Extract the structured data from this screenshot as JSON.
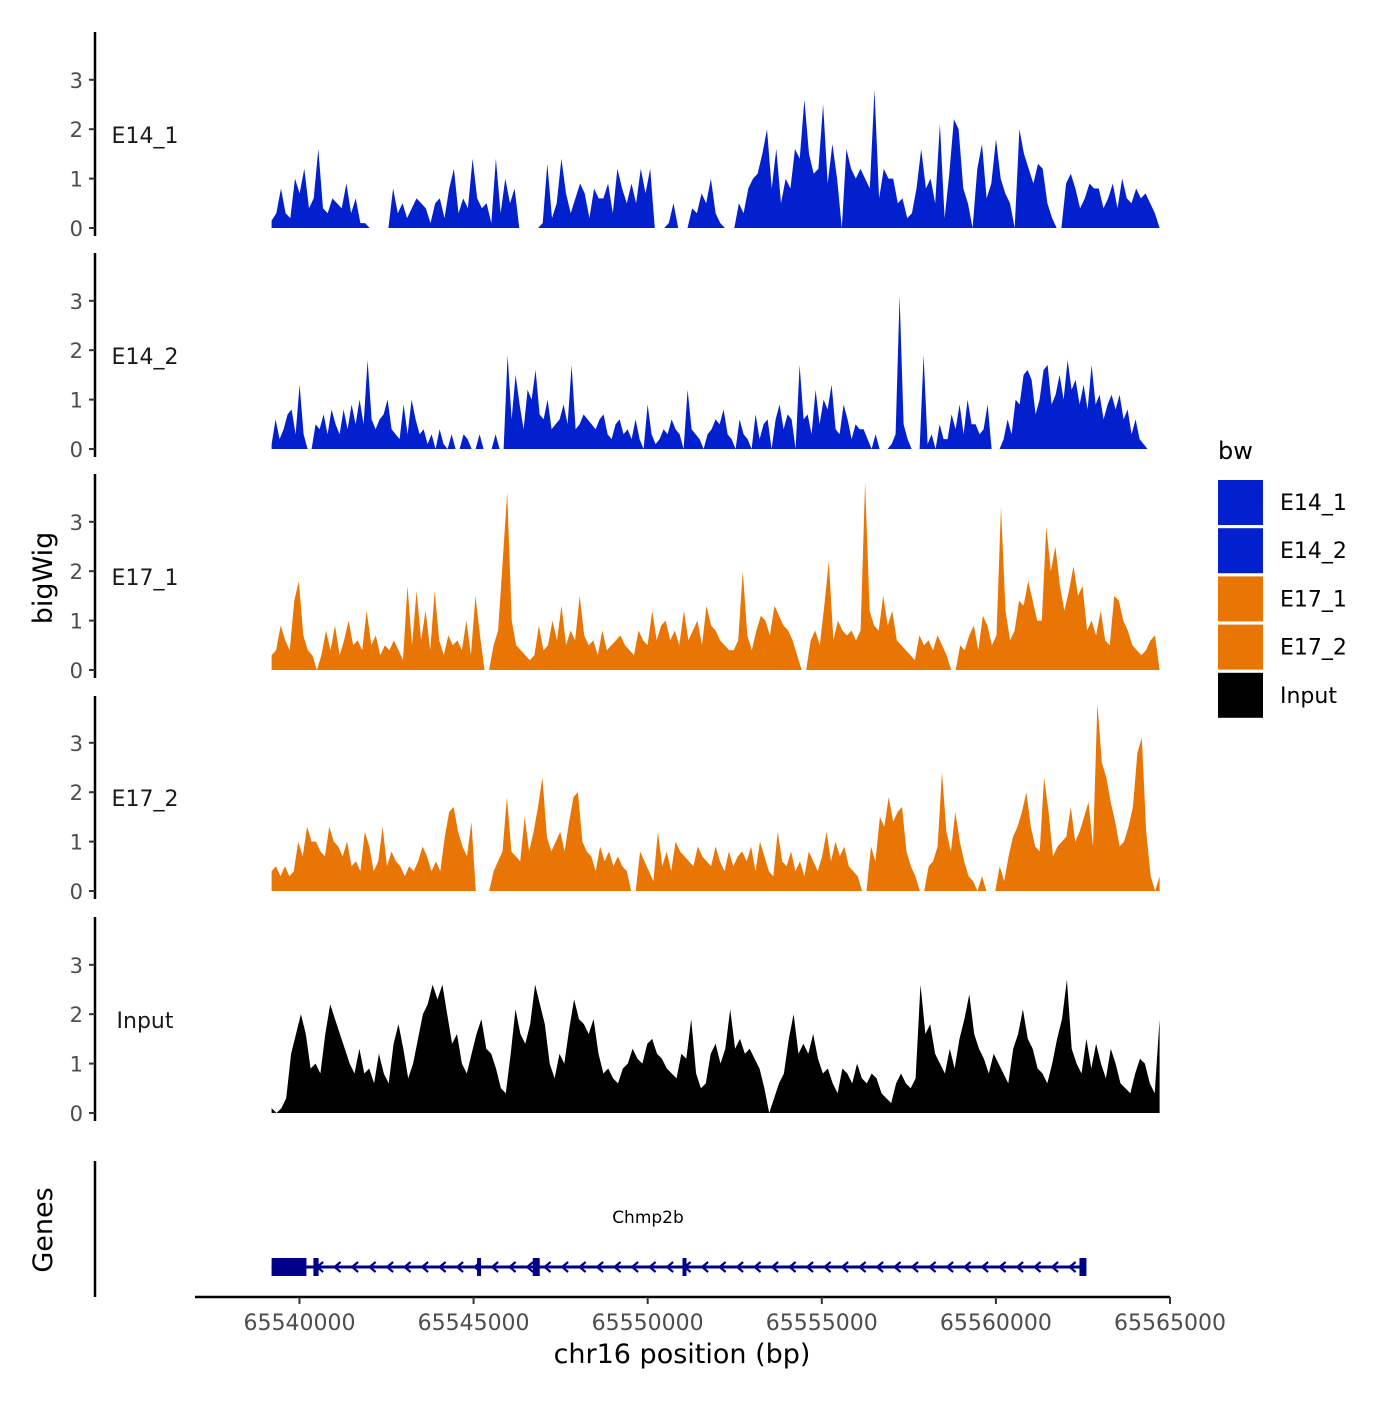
{
  "chart_data": {
    "type": "area",
    "xlabel": "chr16 position (bp)",
    "ylabel": "bigWig",
    "genes_label": "Genes",
    "xlim": [
      65537000,
      65565000
    ],
    "x_ticks": [
      65540000,
      65545000,
      65550000,
      65555000,
      65560000,
      65565000
    ],
    "x_tick_labels": [
      "65540000",
      "65545000",
      "65550000",
      "65555000",
      "65560000",
      "65565000"
    ],
    "ylim": [
      0,
      4
    ],
    "y_ticks": [
      0,
      1,
      2,
      3
    ],
    "y_tick_labels": [
      "0",
      "1",
      "2",
      "3"
    ],
    "track_x_range": [
      65539200,
      65564700
    ],
    "legend": {
      "title": "bw",
      "entries": [
        {
          "label": "E14_1",
          "color": "#0320CF"
        },
        {
          "label": "E14_2",
          "color": "#0320CF"
        },
        {
          "label": "E17_1",
          "color": "#E87504"
        },
        {
          "label": "E17_2",
          "color": "#E87504"
        },
        {
          "label": "Input",
          "color": "#000000"
        }
      ]
    },
    "series": [
      {
        "name": "E14_1",
        "color": "#0320CF",
        "values": [
          0.15,
          0.3,
          0.8,
          0.3,
          0.2,
          1.0,
          0.7,
          1.2,
          0.4,
          0.6,
          1.6,
          0.4,
          0.3,
          0.6,
          0.5,
          0.4,
          0.9,
          0.3,
          0.6,
          0.1,
          0.1,
          0.0,
          0.0,
          0.0,
          0.0,
          0.0,
          0.8,
          0.3,
          0.5,
          0.2,
          0.4,
          0.6,
          0.5,
          0.4,
          0.1,
          0.5,
          0.6,
          0.2,
          0.8,
          1.2,
          0.3,
          0.6,
          0.4,
          1.4,
          0.6,
          0.4,
          0.5,
          0.1,
          1.4,
          0.3,
          1.0,
          0.5,
          0.8,
          0.0,
          0.0,
          0.0,
          0.0,
          0.0,
          0.1,
          1.3,
          0.2,
          0.5,
          1.4,
          0.7,
          0.3,
          0.6,
          0.9,
          0.7,
          0.2,
          0.8,
          0.6,
          0.6,
          0.9,
          0.3,
          1.2,
          0.8,
          0.5,
          0.9,
          0.5,
          1.2,
          0.7,
          1.2,
          0.0,
          0.0,
          0.0,
          0.1,
          0.5,
          0.0,
          0.0,
          0.0,
          0.4,
          0.3,
          0.7,
          0.5,
          1.0,
          0.3,
          0.1,
          0.0,
          0.0,
          0.0,
          0.5,
          0.3,
          0.8,
          1.0,
          1.1,
          1.5,
          2.0,
          0.8,
          1.6,
          0.5,
          1.0,
          0.8,
          1.6,
          1.4,
          2.6,
          1.5,
          1.1,
          1.2,
          2.5,
          0.9,
          1.7,
          1.0,
          0.0,
          1.6,
          1.2,
          1.0,
          1.2,
          1.0,
          0.8,
          2.8,
          0.6,
          1.2,
          1.0,
          1.0,
          0.5,
          0.6,
          0.2,
          0.3,
          0.8,
          1.6,
          0.8,
          1.0,
          0.5,
          2.1,
          0.2,
          1.1,
          2.2,
          2.0,
          0.8,
          0.5,
          0.0,
          1.2,
          1.7,
          0.6,
          0.9,
          1.8,
          1.0,
          0.7,
          0.5,
          0.0,
          2.0,
          1.5,
          1.2,
          0.9,
          1.3,
          1.2,
          0.5,
          0.2,
          0.0,
          0.0,
          0.9,
          1.1,
          0.8,
          0.4,
          0.6,
          0.9,
          0.8,
          0.8,
          0.4,
          0.6,
          0.9,
          0.4,
          1.0,
          0.6,
          0.5,
          0.8,
          0.6,
          0.7,
          0.5,
          0.3,
          0.0
        ]
      },
      {
        "name": "E14_2",
        "color": "#0320CF",
        "values": [
          0.1,
          0.6,
          0.2,
          0.4,
          0.7,
          0.8,
          0.3,
          1.3,
          0.3,
          0.0,
          0.0,
          0.5,
          0.4,
          0.7,
          0.3,
          0.8,
          0.5,
          0.3,
          0.8,
          0.4,
          0.9,
          0.5,
          1.0,
          0.5,
          1.8,
          0.6,
          0.4,
          0.6,
          0.7,
          1.0,
          0.4,
          0.3,
          0.2,
          0.9,
          0.3,
          1.0,
          0.6,
          0.3,
          0.4,
          0.1,
          0.3,
          0.0,
          0.4,
          0.1,
          0.0,
          0.3,
          0.0,
          0.0,
          0.3,
          0.2,
          0.0,
          0.0,
          0.3,
          0.0,
          0.0,
          0.0,
          0.3,
          0.0,
          0.0,
          1.9,
          0.6,
          1.5,
          0.9,
          0.4,
          1.2,
          1.0,
          1.6,
          0.7,
          0.6,
          1.0,
          0.4,
          0.5,
          0.6,
          0.9,
          0.5,
          1.7,
          0.4,
          0.5,
          0.7,
          0.6,
          0.5,
          0.4,
          0.6,
          0.7,
          0.3,
          0.2,
          0.5,
          0.6,
          0.3,
          0.4,
          0.2,
          0.6,
          0.2,
          0.0,
          0.9,
          0.3,
          0.1,
          0.2,
          0.4,
          0.3,
          0.6,
          0.4,
          0.3,
          0.0,
          1.2,
          0.4,
          0.3,
          0.2,
          0.0,
          0.3,
          0.4,
          0.6,
          0.5,
          0.8,
          0.3,
          0.2,
          0.0,
          0.6,
          0.3,
          0.2,
          0.0,
          0.7,
          0.2,
          0.5,
          0.6,
          0.0,
          0.6,
          0.9,
          0.4,
          0.7,
          0.6,
          0.0,
          1.7,
          0.6,
          0.7,
          0.3,
          1.2,
          0.5,
          1.0,
          0.8,
          1.3,
          0.4,
          0.3,
          0.9,
          0.6,
          0.2,
          0.5,
          0.4,
          0.4,
          0.2,
          0.0,
          0.3,
          0.0,
          0.0,
          0.0,
          0.1,
          0.3,
          3.1,
          0.5,
          0.2,
          0.0,
          0.0,
          0.0,
          1.9,
          0.1,
          0.3,
          0.0,
          0.5,
          0.2,
          0.2,
          0.7,
          0.4,
          0.9,
          0.3,
          1.0,
          0.5,
          0.5,
          0.3,
          0.4,
          0.9,
          0.0,
          0.0,
          0.0,
          0.2,
          0.6,
          0.3,
          1.0,
          0.9,
          1.5,
          1.6,
          1.4,
          0.7,
          1.0,
          1.6,
          1.7,
          0.9,
          1.1,
          1.5,
          1.0,
          1.8,
          1.2,
          1.4,
          0.9,
          1.3,
          0.8,
          1.7,
          0.9,
          1.1,
          0.6,
          0.9,
          1.1,
          0.8,
          1.1,
          0.6,
          0.8,
          0.3,
          0.6,
          0.2,
          0.1,
          0.0,
          0.0,
          0.0,
          0.0
        ]
      },
      {
        "name": "E17_1",
        "color": "#E87504",
        "values": [
          0.3,
          0.4,
          0.9,
          0.6,
          0.4,
          1.4,
          1.8,
          0.7,
          0.4,
          0.3,
          0.0,
          0.3,
          0.8,
          0.4,
          0.9,
          0.3,
          0.6,
          1.0,
          0.5,
          0.6,
          0.4,
          1.2,
          0.5,
          0.7,
          0.3,
          0.5,
          0.4,
          0.6,
          0.4,
          0.2,
          1.7,
          0.5,
          1.6,
          0.6,
          1.2,
          0.4,
          1.6,
          0.6,
          0.3,
          0.7,
          0.5,
          0.6,
          0.4,
          1.0,
          0.3,
          1.5,
          0.7,
          0.0,
          0.0,
          0.5,
          0.8,
          2.2,
          3.6,
          1.0,
          0.5,
          0.4,
          0.3,
          0.2,
          0.3,
          0.9,
          0.4,
          0.5,
          1.0,
          0.6,
          1.3,
          0.5,
          0.8,
          0.6,
          1.5,
          0.7,
          0.5,
          0.6,
          0.3,
          0.8,
          0.4,
          0.5,
          0.6,
          0.7,
          0.5,
          0.4,
          0.3,
          0.8,
          0.6,
          0.5,
          1.2,
          0.6,
          0.9,
          1.0,
          0.6,
          0.8,
          0.5,
          1.2,
          0.6,
          0.8,
          1.0,
          0.5,
          1.3,
          0.9,
          0.8,
          0.6,
          0.5,
          0.4,
          0.4,
          0.6,
          2.0,
          0.7,
          0.4,
          0.8,
          1.1,
          1.0,
          0.7,
          1.3,
          1.1,
          0.9,
          0.8,
          0.6,
          0.3,
          0.0,
          0.0,
          0.6,
          0.8,
          0.5,
          1.3,
          2.2,
          0.6,
          1.0,
          0.8,
          0.7,
          0.8,
          0.6,
          0.8,
          3.8,
          1.2,
          0.9,
          0.8,
          1.5,
          0.9,
          1.2,
          0.6,
          0.5,
          0.4,
          0.3,
          0.2,
          0.7,
          0.5,
          0.6,
          0.4,
          0.7,
          0.5,
          0.3,
          0.0,
          0.0,
          0.5,
          0.4,
          0.7,
          0.9,
          0.4,
          1.1,
          0.9,
          0.5,
          0.7,
          3.3,
          1.2,
          0.6,
          0.8,
          1.4,
          1.3,
          1.8,
          1.4,
          1.0,
          1.0,
          2.9,
          2.0,
          2.5,
          1.7,
          1.2,
          1.6,
          2.1,
          1.5,
          1.7,
          0.8,
          1.0,
          0.7,
          1.2,
          0.6,
          0.5,
          1.5,
          1.4,
          1.0,
          0.8,
          0.5,
          0.4,
          0.3,
          0.4,
          0.6,
          0.7,
          0.0
        ]
      },
      {
        "name": "E17_2",
        "color": "#E87504",
        "values": [
          0.4,
          0.5,
          0.3,
          0.5,
          0.3,
          0.4,
          1.0,
          0.7,
          1.3,
          1.0,
          1.0,
          0.8,
          0.7,
          1.3,
          1.0,
          0.9,
          0.7,
          1.0,
          0.5,
          0.6,
          0.4,
          1.2,
          0.9,
          0.4,
          0.6,
          1.3,
          0.5,
          0.8,
          0.6,
          0.5,
          0.3,
          0.5,
          0.4,
          0.6,
          0.9,
          0.7,
          0.4,
          0.6,
          0.4,
          1.1,
          1.6,
          1.7,
          1.2,
          0.9,
          0.7,
          1.4,
          0.0,
          0.0,
          0.0,
          0.0,
          0.4,
          0.6,
          0.8,
          1.9,
          0.8,
          0.7,
          0.6,
          1.5,
          0.8,
          1.2,
          1.7,
          2.3,
          1.1,
          0.8,
          1.0,
          1.2,
          0.8,
          1.4,
          1.9,
          2.0,
          1.0,
          0.8,
          0.7,
          0.4,
          0.9,
          0.6,
          0.8,
          0.5,
          0.7,
          0.5,
          0.4,
          0.0,
          0.0,
          0.8,
          0.6,
          0.4,
          0.2,
          1.2,
          0.5,
          0.8,
          0.4,
          1.0,
          0.8,
          0.7,
          0.6,
          0.5,
          0.9,
          0.7,
          0.6,
          0.5,
          0.9,
          0.6,
          0.4,
          0.8,
          0.5,
          0.7,
          0.8,
          0.6,
          0.9,
          0.4,
          1.0,
          0.7,
          0.4,
          0.3,
          1.2,
          0.6,
          0.5,
          0.8,
          0.4,
          0.6,
          0.3,
          0.8,
          0.6,
          0.4,
          0.7,
          1.2,
          0.6,
          1.0,
          0.7,
          0.9,
          0.5,
          0.4,
          0.3,
          0.0,
          0.0,
          0.9,
          0.6,
          1.5,
          1.3,
          1.9,
          1.4,
          1.6,
          1.7,
          0.8,
          0.5,
          0.3,
          0.0,
          0.0,
          0.5,
          0.6,
          0.9,
          2.4,
          1.2,
          0.8,
          1.6,
          1.0,
          0.6,
          0.3,
          0.2,
          0.0,
          0.3,
          0.0,
          0.0,
          0.0,
          0.5,
          0.2,
          0.7,
          1.1,
          1.3,
          1.6,
          2.0,
          1.3,
          0.9,
          0.8,
          2.3,
          1.6,
          0.7,
          0.9,
          1.0,
          1.1,
          1.7,
          1.0,
          1.2,
          1.5,
          1.8,
          0.9,
          3.8,
          2.6,
          2.3,
          1.8,
          1.4,
          0.9,
          1.0,
          1.3,
          1.7,
          2.8,
          3.1,
          1.2,
          0.3,
          0.0,
          0.3
        ]
      },
      {
        "name": "Input",
        "color": "#000000",
        "values": [
          0.1,
          0.0,
          0.1,
          0.3,
          1.2,
          1.6,
          2.0,
          1.6,
          0.9,
          1.0,
          0.8,
          1.6,
          2.2,
          1.9,
          1.6,
          1.3,
          1.0,
          0.8,
          1.3,
          0.8,
          0.9,
          0.6,
          1.2,
          0.8,
          0.6,
          1.4,
          1.8,
          1.3,
          0.7,
          1.0,
          1.5,
          2.0,
          2.2,
          2.6,
          2.3,
          2.6,
          2.0,
          1.4,
          1.6,
          1.0,
          0.8,
          1.2,
          1.6,
          1.9,
          1.3,
          1.2,
          0.9,
          0.5,
          0.4,
          1.2,
          2.1,
          1.6,
          1.4,
          1.8,
          2.6,
          2.2,
          1.8,
          1.0,
          0.7,
          1.2,
          1.0,
          1.7,
          2.3,
          1.9,
          1.8,
          1.6,
          1.9,
          1.2,
          0.8,
          0.9,
          0.7,
          0.6,
          0.9,
          1.0,
          1.3,
          1.1,
          1.0,
          1.4,
          1.5,
          1.2,
          1.1,
          0.9,
          0.8,
          0.7,
          1.2,
          1.1,
          1.9,
          0.8,
          0.5,
          0.6,
          1.2,
          1.4,
          1.0,
          1.3,
          2.1,
          1.3,
          1.5,
          1.2,
          1.3,
          1.1,
          0.9,
          0.5,
          0.0,
          0.3,
          0.6,
          0.8,
          1.5,
          2.0,
          1.2,
          1.4,
          1.2,
          1.6,
          1.1,
          0.8,
          0.9,
          0.6,
          0.4,
          0.9,
          0.8,
          0.6,
          1.0,
          0.7,
          0.6,
          0.8,
          0.7,
          0.4,
          0.3,
          0.2,
          0.6,
          0.8,
          0.6,
          0.5,
          0.7,
          2.6,
          1.6,
          1.8,
          1.2,
          1.0,
          0.8,
          1.3,
          0.9,
          1.5,
          1.9,
          2.4,
          1.6,
          1.3,
          1.1,
          0.8,
          1.2,
          1.0,
          0.8,
          0.6,
          1.3,
          1.6,
          2.1,
          1.5,
          1.3,
          0.9,
          0.8,
          0.6,
          1.0,
          1.5,
          1.9,
          2.7,
          1.3,
          1.0,
          0.8,
          1.5,
          0.9,
          1.4,
          1.0,
          0.7,
          1.3,
          1.0,
          0.6,
          0.5,
          0.4,
          0.8,
          1.1,
          1.0,
          0.6,
          0.4,
          1.9
        ]
      }
    ],
    "gene": {
      "name": "Chmp2b",
      "start": 65539200,
      "end": 65562600,
      "strand": "-",
      "exons": [
        [
          65539200,
          65540200
        ],
        [
          65540400,
          65540550
        ],
        [
          65545100,
          65545200
        ],
        [
          65546700,
          65546900
        ],
        [
          65551000,
          65551100
        ],
        [
          65562400,
          65562600
        ]
      ],
      "color": "#00008B"
    }
  }
}
